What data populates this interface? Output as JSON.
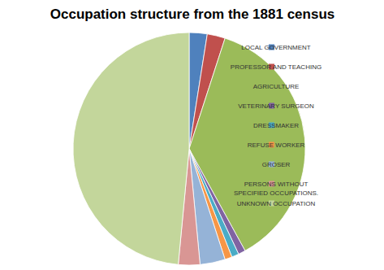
{
  "chart_data": {
    "type": "pie",
    "title": "Occupation structure from the 1881 census",
    "categories": [
      "LOCAL GOVERNMENT",
      "PROFESSOR AND TEACHING",
      "AGRICULTURE",
      "VETERINARY SURGEON",
      "DRESSMAKER",
      "REFUSE WORKER",
      "GROSER",
      "PERSONS WITHOUT SPECIFIED OCCUPATIONS.",
      "UNKNOWN OCCUPATION"
    ],
    "values": [
      2.5,
      2.5,
      37,
      1,
      1,
      1,
      3.5,
      3,
      48.5
    ],
    "colors": [
      "#4f81bd",
      "#c0504d",
      "#9bbb59",
      "#8064a2",
      "#4bacc6",
      "#f79646",
      "#95b3d7",
      "#d99694",
      "#c3d69b"
    ],
    "legend": "right",
    "data_labels": false
  }
}
